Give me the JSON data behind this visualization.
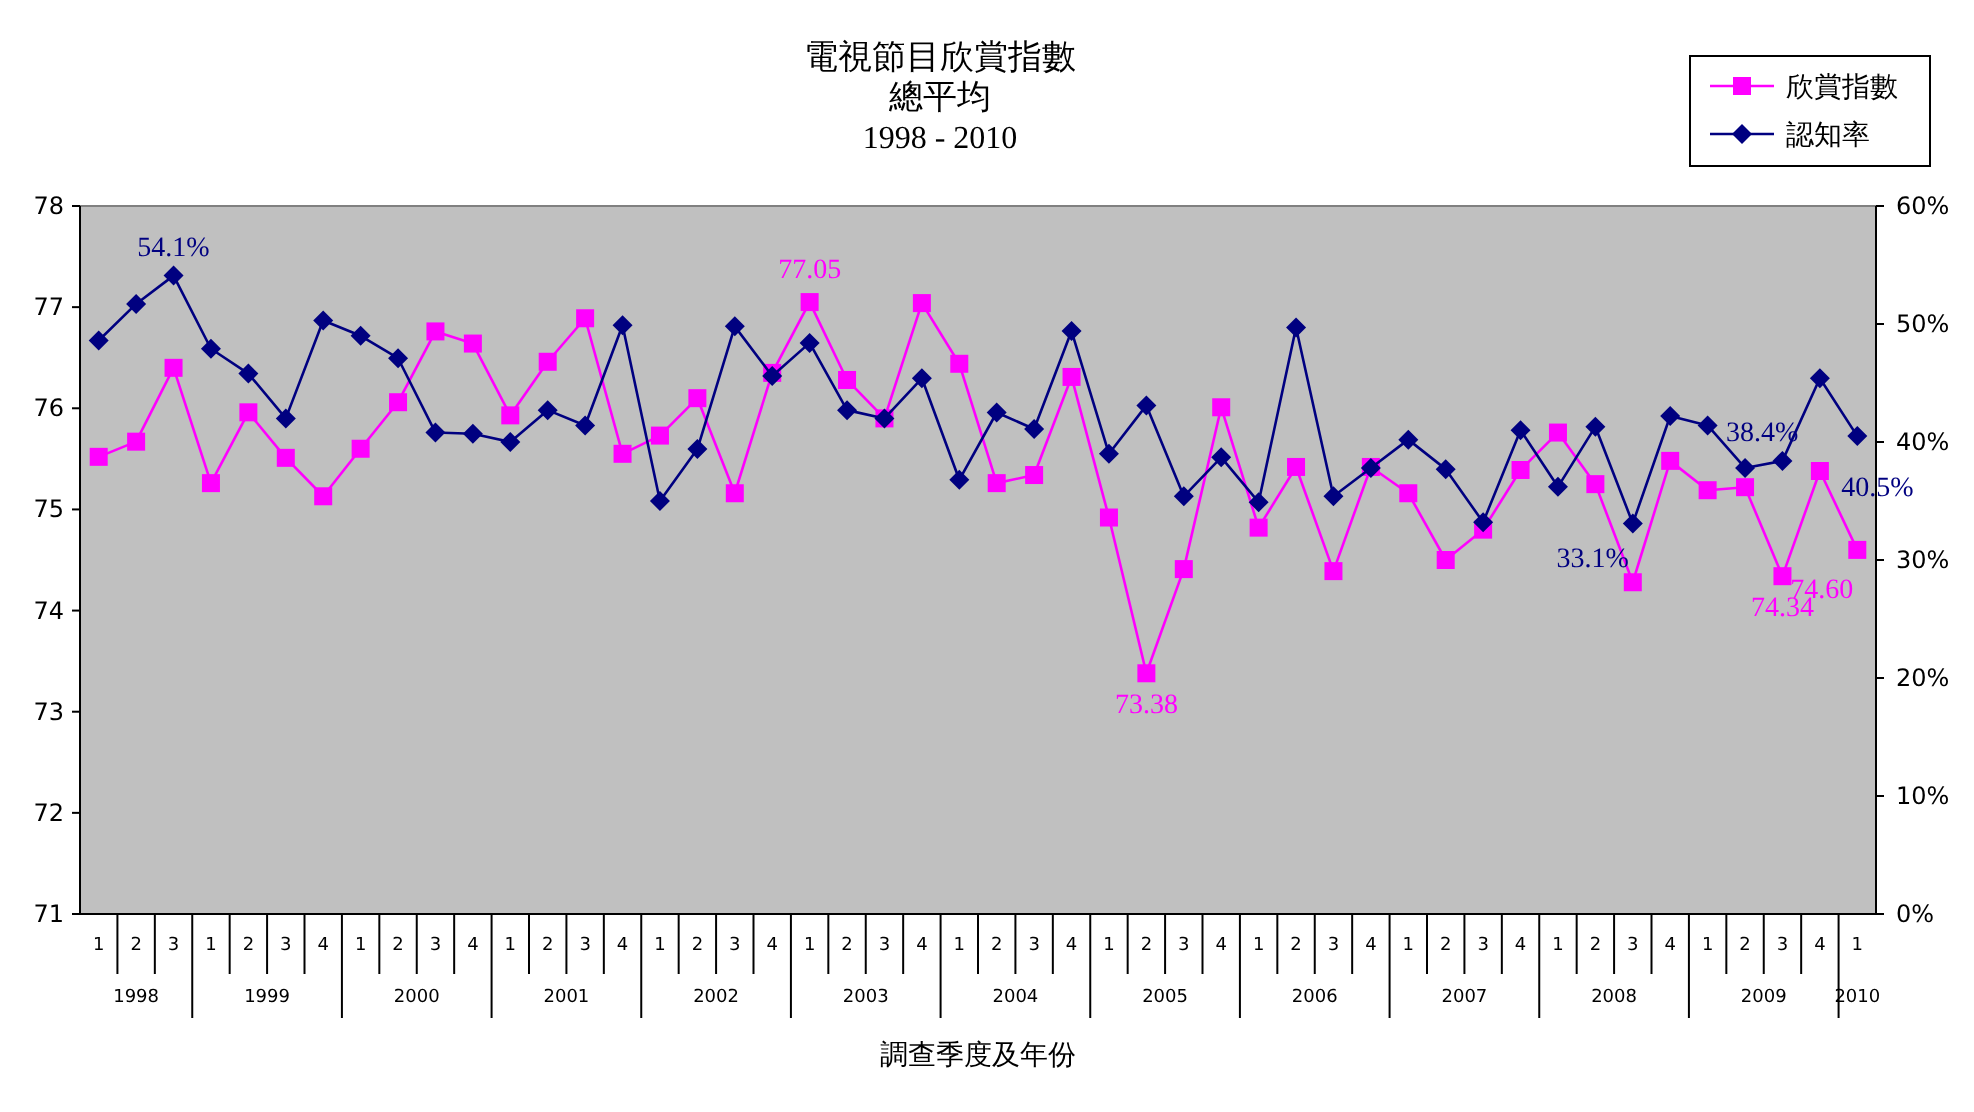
{
  "chart_data": {
    "type": "line",
    "title": "電視節目欣賞指數",
    "subtitle": "總平均\n1998 - 2010",
    "xlabel": "調查季度及年份",
    "categories": [
      "1",
      "2",
      "3",
      "1",
      "2",
      "3",
      "4",
      "1",
      "2",
      "3",
      "4",
      "1",
      "2",
      "3",
      "4",
      "1",
      "2",
      "3",
      "4",
      "1",
      "2",
      "3",
      "4",
      "1",
      "2",
      "3",
      "4",
      "1",
      "2",
      "3",
      "4",
      "1",
      "2",
      "3",
      "4",
      "1",
      "2",
      "3",
      "4",
      "1",
      "2",
      "3",
      "4",
      "1",
      "2",
      "3",
      "4",
      "1"
    ],
    "annotations": [
      "1998",
      "1999",
      "2000",
      "2001",
      "2002",
      "2003",
      "2004",
      "2005",
      "2006",
      "2007",
      "2008",
      "2009",
      "2010"
    ],
    "series": [
      {
        "name": "欣賞指數",
        "color": "#ff00ff",
        "marker": "square",
        "values": [
          75.52,
          75.67,
          76.4,
          75.26,
          75.96,
          75.51,
          75.13,
          75.6,
          76.06,
          76.76,
          76.64,
          75.93,
          76.46,
          76.89,
          75.55,
          75.73,
          76.1,
          75.16,
          76.35,
          77.05,
          76.28,
          75.9,
          77.04,
          76.44,
          75.26,
          75.34,
          76.31,
          74.92,
          73.38,
          74.41,
          76.01,
          74.82,
          75.42,
          74.39,
          75.42,
          75.16,
          74.5,
          74.8,
          75.39,
          75.76,
          75.25,
          74.28,
          75.48,
          75.19,
          75.22,
          74.34,
          75.38,
          74.6
        ],
        "value_labels": [
          null,
          null,
          null,
          null,
          null,
          null,
          null,
          null,
          null,
          null,
          null,
          null,
          null,
          null,
          null,
          null,
          null,
          null,
          null,
          "77.05",
          null,
          null,
          null,
          null,
          null,
          null,
          null,
          null,
          "73.38",
          null,
          null,
          null,
          null,
          null,
          null,
          null,
          null,
          null,
          null,
          null,
          null,
          null,
          null,
          null,
          null,
          "74.34",
          null,
          "74.60"
        ]
      },
      {
        "name": "認知率",
        "color": "#000080",
        "marker": "diamond",
        "axis": "y2",
        "values": [
          48.6,
          51.7,
          54.1,
          47.9,
          45.8,
          42.0,
          50.3,
          49.0,
          47.1,
          40.8,
          40.7,
          40.0,
          42.7,
          41.4,
          49.9,
          35.0,
          39.4,
          49.8,
          45.6,
          48.4,
          42.7,
          42.0,
          45.4,
          36.8,
          42.5,
          41.1,
          49.4,
          39.0,
          43.1,
          35.4,
          38.7,
          34.9,
          49.7,
          35.4,
          37.8,
          40.2,
          37.7,
          33.2,
          41.0,
          36.2,
          41.3,
          33.1,
          42.2,
          41.4,
          37.8,
          38.4,
          45.4,
          40.5
        ],
        "value_labels": [
          null,
          null,
          "54.1%",
          null,
          null,
          null,
          null,
          null,
          null,
          null,
          null,
          null,
          null,
          null,
          null,
          null,
          null,
          null,
          null,
          null,
          null,
          null,
          null,
          null,
          null,
          null,
          null,
          null,
          null,
          null,
          null,
          null,
          null,
          null,
          null,
          null,
          null,
          null,
          null,
          null,
          null,
          "33.1%",
          null,
          null,
          null,
          "38.4%",
          null,
          "40.5%"
        ]
      }
    ],
    "ylim": [
      71,
      78
    ],
    "yticks": [
      71,
      72,
      73,
      74,
      75,
      76,
      77,
      78
    ],
    "y2lim": [
      0,
      60
    ],
    "y2ticks": [
      {
        "value": 0,
        "label": "0%"
      },
      {
        "value": 10,
        "label": "10%"
      },
      {
        "value": 20,
        "label": "20%"
      },
      {
        "value": 30,
        "label": "30%"
      },
      {
        "value": 40,
        "label": "40%"
      },
      {
        "value": 50,
        "label": "50%"
      },
      {
        "value": 60,
        "label": "60%"
      }
    ],
    "legend": "top right",
    "line_style": "solid"
  }
}
